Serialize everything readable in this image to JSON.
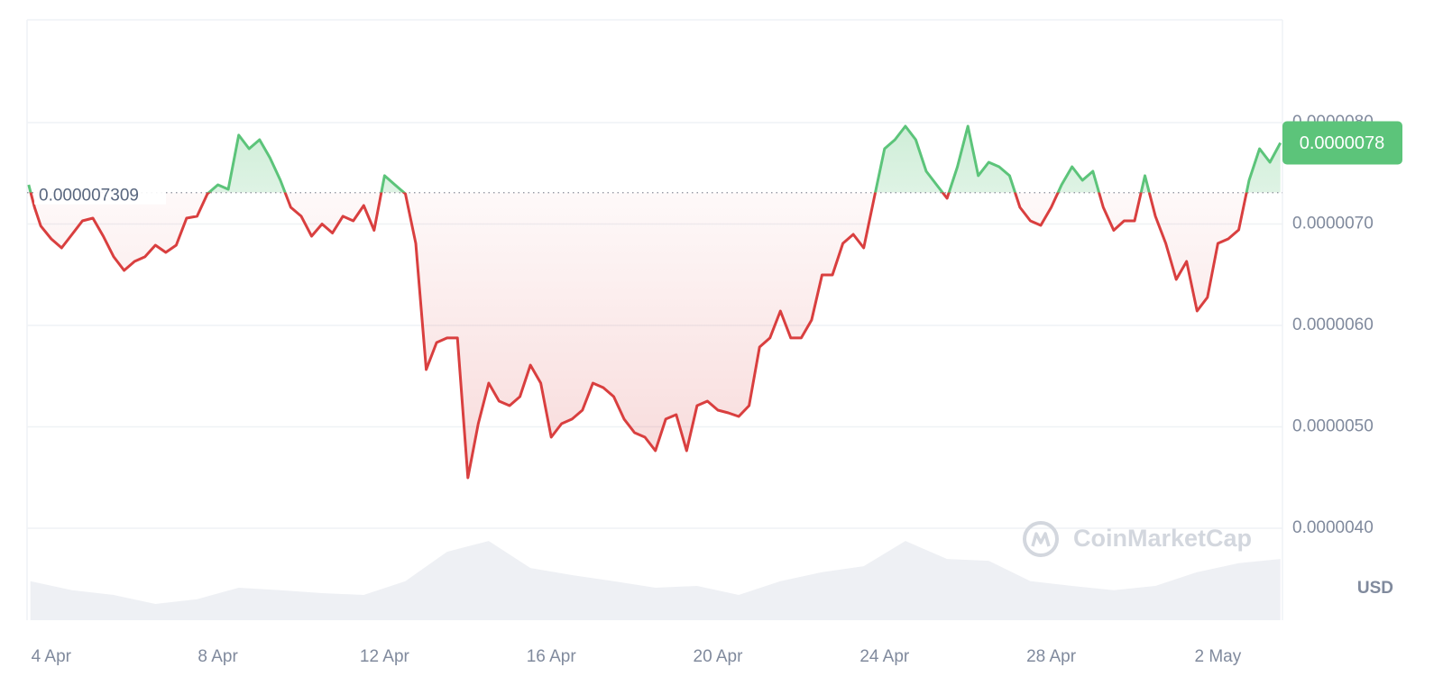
{
  "chart_data": {
    "type": "line",
    "x": [
      -0.54,
      -0.4,
      -0.25,
      0,
      0.25,
      0.5,
      0.75,
      1,
      1.25,
      1.5,
      1.75,
      2,
      2.25,
      2.5,
      2.75,
      3,
      3.25,
      3.5,
      3.75,
      4,
      4.25,
      4.5,
      4.75,
      5,
      5.25,
      5.5,
      5.75,
      6,
      6.25,
      6.5,
      6.75,
      7,
      7.25,
      7.5,
      7.75,
      8,
      8.25,
      8.5,
      8.75,
      9,
      9.25,
      9.5,
      9.75,
      10,
      10.25,
      10.5,
      10.75,
      11,
      11.25,
      11.5,
      11.75,
      12,
      12.25,
      12.5,
      12.75,
      13,
      13.25,
      13.5,
      13.75,
      14,
      14.25,
      14.5,
      14.75,
      15,
      15.25,
      15.5,
      15.75,
      16,
      16.25,
      16.5,
      16.75,
      17,
      17.25,
      17.5,
      17.75,
      18,
      18.25,
      18.5,
      18.75,
      19,
      19.25,
      19.5,
      19.75,
      20,
      20.25,
      20.5,
      20.75,
      21,
      21.25,
      21.5,
      21.75,
      22,
      22.25,
      22.5,
      22.75,
      23,
      23.25,
      23.5,
      23.75,
      24,
      24.25,
      24.5,
      24.75,
      25,
      25.25,
      25.5,
      25.75,
      26,
      26.25,
      26.5,
      26.75,
      27,
      27.25,
      27.5,
      27.75,
      28,
      28.25,
      28.5,
      28.75,
      29,
      29.25,
      29.5
    ],
    "series": [
      {
        "values": [
          7.387e-06,
          7.164e-06,
          6.98e-06,
          6.853e-06,
          6.764e-06,
          6.898e-06,
          7.031e-06,
          7.058e-06,
          6.88e-06,
          6.676e-06,
          6.542e-06,
          6.631e-06,
          6.676e-06,
          6.791e-06,
          6.72e-06,
          6.791e-06,
          7.058e-06,
          7.076e-06,
          7.298e-06,
          7.387e-06,
          7.342e-06,
          7.876e-06,
          7.742e-06,
          7.831e-06,
          7.653e-06,
          7.431e-06,
          7.164e-06,
          7.076e-06,
          6.88e-06,
          7e-06,
          6.911e-06,
          7.076e-06,
          7.031e-06,
          7.182e-06,
          6.938e-06,
          7.476e-06,
          7.387e-06,
          7.298e-06,
          6.809e-06,
          5.564e-06,
          5.831e-06,
          5.876e-06,
          5.876e-06,
          4.498e-06,
          5.031e-06,
          5.431e-06,
          5.253e-06,
          5.209e-06,
          5.298e-06,
          5.609e-06,
          5.431e-06,
          4.898e-06,
          5.031e-06,
          5.076e-06,
          5.164e-06,
          5.431e-06,
          5.387e-06,
          5.298e-06,
          5.076e-06,
          4.942e-06,
          4.898e-06,
          4.764e-06,
          5.076e-06,
          5.12e-06,
          4.764e-06,
          5.209e-06,
          5.253e-06,
          5.164e-06,
          5.138e-06,
          5.102e-06,
          5.209e-06,
          5.787e-06,
          5.876e-06,
          6.142e-06,
          5.876e-06,
          5.876e-06,
          6.053e-06,
          6.498e-06,
          6.498e-06,
          6.809e-06,
          6.898e-06,
          6.764e-06,
          7.253e-06,
          7.742e-06,
          7.831e-06,
          7.964e-06,
          7.831e-06,
          7.52e-06,
          7.387e-06,
          7.253e-06,
          7.564e-06,
          7.964e-06,
          7.476e-06,
          7.609e-06,
          7.564e-06,
          7.476e-06,
          7.164e-06,
          7.031e-06,
          6.987e-06,
          7.164e-06,
          7.387e-06,
          7.564e-06,
          7.431e-06,
          7.52e-06,
          7.164e-06,
          6.938e-06,
          7.031e-06,
          7.031e-06,
          7.476e-06,
          7.076e-06,
          6.809e-06,
          6.453e-06,
          6.631e-06,
          6.142e-06,
          6.276e-06,
          6.809e-06,
          6.853e-06,
          6.942e-06,
          7.431e-06,
          7.742e-06,
          7.609e-06,
          7.8e-06
        ],
        "colors": {
          "above": "#5cc47a",
          "below": "#d93f3f"
        }
      }
    ],
    "baseline": {
      "value": 7.309e-06,
      "label": "0.000007309"
    },
    "last_label": {
      "value": 7.8e-06,
      "label": "0.0000078"
    },
    "volume": {
      "axis": "y2",
      "color": "#eef0f4",
      "x": [
        -0.5,
        0.5,
        1.5,
        2.5,
        3.5,
        4.5,
        5.5,
        6.5,
        7.5,
        8.5,
        9.5,
        10.5,
        11.5,
        12.5,
        13.5,
        14.5,
        15.5,
        16.5,
        17.5,
        18.5,
        19.5,
        20.5,
        21.5,
        22.5,
        23.5,
        24.5,
        25.5,
        26.5,
        27.5,
        28.5,
        29.5
      ],
      "values": [
        6.5,
        5.0,
        4.2,
        2.7,
        3.5,
        5.4,
        5.0,
        4.5,
        4.2,
        6.5,
        11.4,
        13.2,
        8.7,
        7.5,
        6.5,
        5.4,
        5.7,
        4.2,
        6.5,
        8.0,
        9.0,
        13.2,
        10.2,
        9.9,
        6.5,
        5.7,
        5.0,
        5.7,
        8.0,
        9.5,
        10.2
      ]
    },
    "xlim": [
      -0.58,
      29.55
    ],
    "xticks": [
      {
        "value": 0,
        "label": "4 Apr"
      },
      {
        "value": 4,
        "label": "8 Apr"
      },
      {
        "value": 8,
        "label": "12 Apr"
      },
      {
        "value": 12,
        "label": "16 Apr"
      },
      {
        "value": 16,
        "label": "20 Apr"
      },
      {
        "value": 20,
        "label": "24 Apr"
      },
      {
        "value": 24,
        "label": "28 Apr"
      },
      {
        "value": 28,
        "label": "2 May"
      }
    ],
    "ylim": [
      3.0933e-06,
      9.0133e-06
    ],
    "yticks": [
      {
        "value": 8e-06,
        "label": "0.0000080"
      },
      {
        "value": 7e-06,
        "label": "0.0000070"
      },
      {
        "value": 6e-06,
        "label": "0.0000060"
      },
      {
        "value": 5e-06,
        "label": "0.0000050"
      },
      {
        "value": 4e-06,
        "label": "0.0000040"
      }
    ],
    "y2lim": [
      0,
      100
    ],
    "grid": true,
    "currency": "USD",
    "watermark": "CoinMarketCap"
  }
}
